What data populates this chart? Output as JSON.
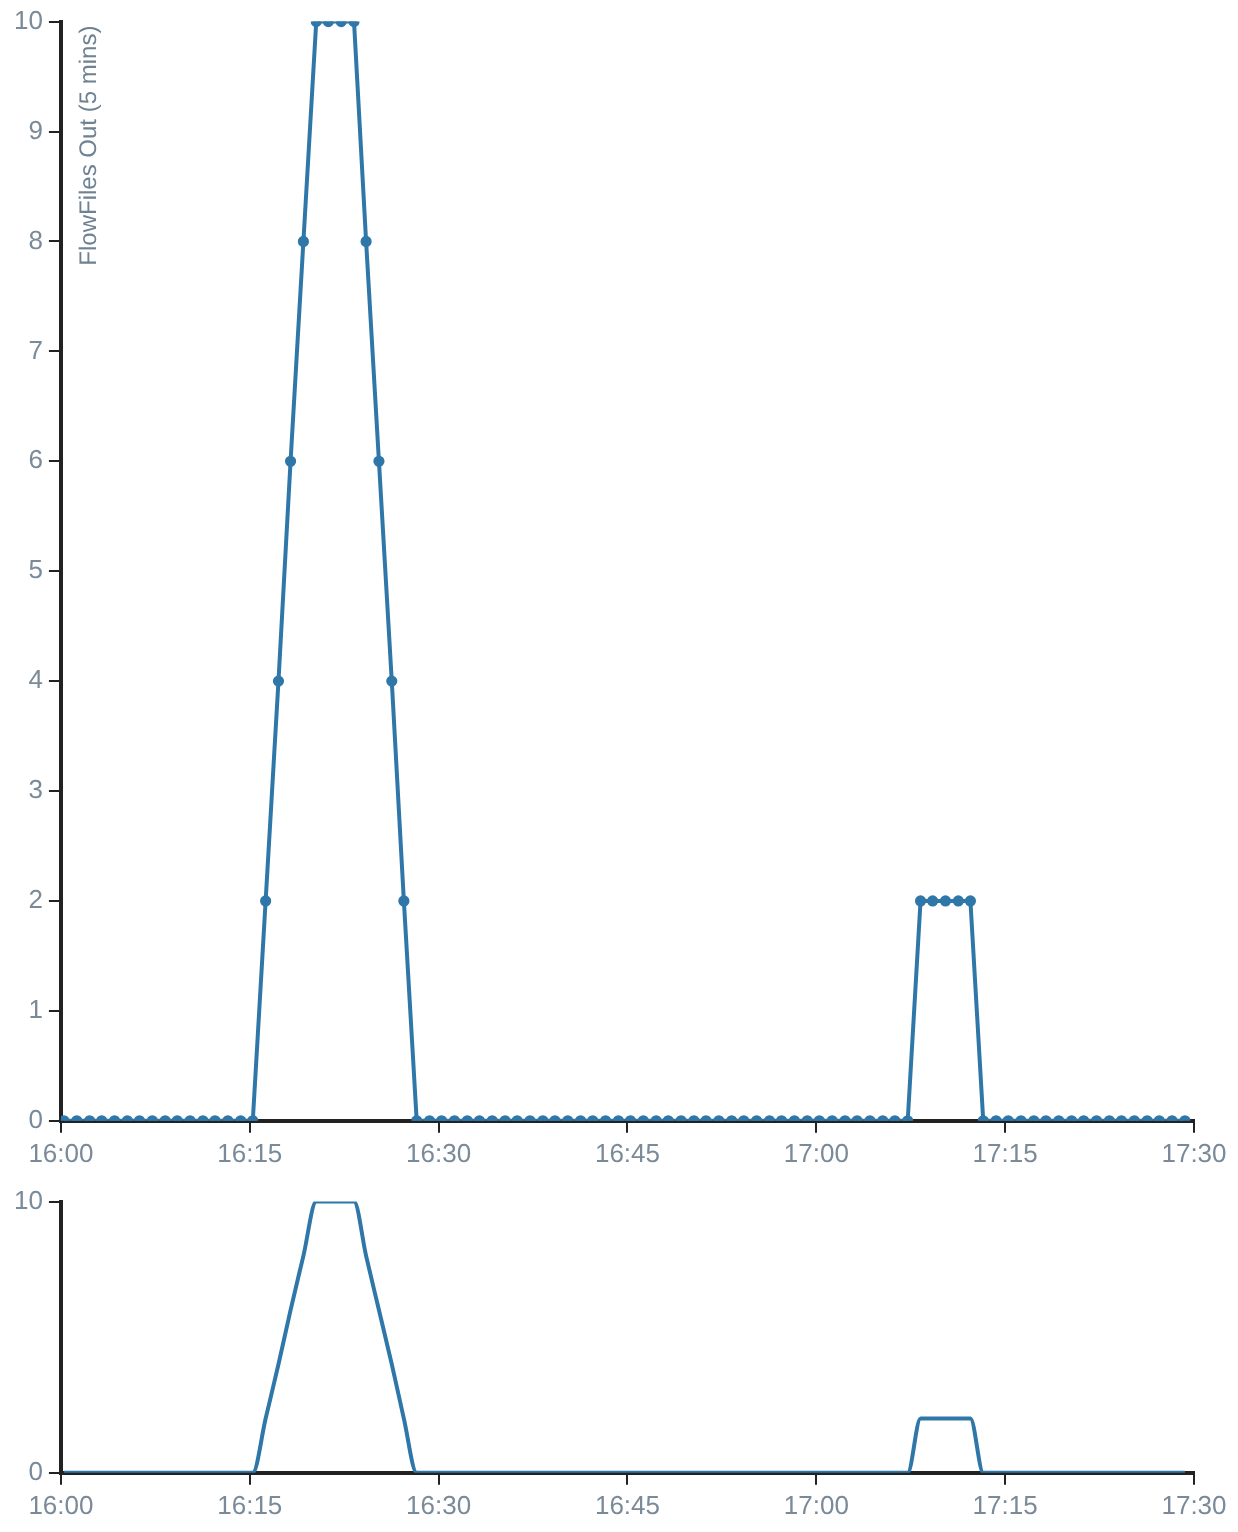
{
  "chart_data": [
    {
      "type": "line",
      "ylabel": "FlowFiles Out (5 mins)",
      "color": "#2f77a8",
      "marker": "circle",
      "x": [
        16.004,
        16.021,
        16.038,
        16.054,
        16.071,
        16.088,
        16.104,
        16.121,
        16.138,
        16.154,
        16.171,
        16.188,
        16.204,
        16.221,
        16.238,
        16.254,
        16.271,
        16.288,
        16.304,
        16.321,
        16.338,
        16.354,
        16.371,
        16.388,
        16.404,
        16.421,
        16.438,
        16.454,
        16.471,
        16.488,
        16.504,
        16.521,
        16.538,
        16.554,
        16.571,
        16.588,
        16.604,
        16.621,
        16.638,
        16.654,
        16.671,
        16.688,
        16.704,
        16.721,
        16.738,
        16.754,
        16.771,
        16.788,
        16.804,
        16.821,
        16.838,
        16.854,
        16.871,
        16.888,
        16.904,
        16.921,
        16.938,
        16.954,
        16.971,
        16.988,
        17.004,
        17.021,
        17.038,
        17.054,
        17.071,
        17.088,
        17.104,
        17.121,
        17.138,
        17.154,
        17.171,
        17.188,
        17.204,
        17.221,
        17.238,
        17.254,
        17.271,
        17.288,
        17.304,
        17.321,
        17.338,
        17.354,
        17.371,
        17.388,
        17.404,
        17.421,
        17.438,
        17.454,
        17.471,
        17.488
      ],
      "values": [
        0,
        0,
        0,
        0,
        0,
        0,
        0,
        0,
        0,
        0,
        0,
        0,
        0,
        0,
        0,
        0,
        2,
        4,
        6,
        8,
        10,
        10,
        10,
        10,
        8,
        6,
        4,
        2,
        0,
        0,
        0,
        0,
        0,
        0,
        0,
        0,
        0,
        0,
        0,
        0,
        0,
        0,
        0,
        0,
        0,
        0,
        0,
        0,
        0,
        0,
        0,
        0,
        0,
        0,
        0,
        0,
        0,
        0,
        0,
        0,
        0,
        0,
        0,
        0,
        0,
        0,
        0,
        0,
        2,
        2,
        2,
        2,
        2,
        0,
        0,
        0,
        0,
        0,
        0,
        0,
        0,
        0,
        0,
        0,
        0,
        0,
        0,
        0,
        0,
        0
      ],
      "xlim": [
        16,
        17.5
      ],
      "xticks": [
        {
          "value": 16,
          "label": "16:00"
        },
        {
          "value": 16.25,
          "label": "16:15"
        },
        {
          "value": 16.5,
          "label": "16:30"
        },
        {
          "value": 16.75,
          "label": "16:45"
        },
        {
          "value": 17,
          "label": "17:00"
        },
        {
          "value": 17.25,
          "label": "17:15"
        },
        {
          "value": 17.5,
          "label": "17:30"
        }
      ],
      "ylim": [
        0,
        10
      ],
      "yticks": [
        0,
        1,
        2,
        3,
        4,
        5,
        6,
        7,
        8,
        9,
        10
      ]
    },
    {
      "type": "line",
      "color": "#2f77a8",
      "marker": "none",
      "x": [
        16.004,
        16.021,
        16.038,
        16.054,
        16.071,
        16.088,
        16.104,
        16.121,
        16.138,
        16.154,
        16.171,
        16.188,
        16.204,
        16.221,
        16.238,
        16.254,
        16.271,
        16.288,
        16.304,
        16.321,
        16.338,
        16.354,
        16.371,
        16.388,
        16.404,
        16.421,
        16.438,
        16.454,
        16.471,
        16.488,
        16.504,
        16.521,
        16.538,
        16.554,
        16.571,
        16.588,
        16.604,
        16.621,
        16.638,
        16.654,
        16.671,
        16.688,
        16.704,
        16.721,
        16.738,
        16.754,
        16.771,
        16.788,
        16.804,
        16.821,
        16.838,
        16.854,
        16.871,
        16.888,
        16.904,
        16.921,
        16.938,
        16.954,
        16.971,
        16.988,
        17.004,
        17.021,
        17.038,
        17.054,
        17.071,
        17.088,
        17.104,
        17.121,
        17.138,
        17.154,
        17.171,
        17.188,
        17.204,
        17.221,
        17.238,
        17.254,
        17.271,
        17.288,
        17.304,
        17.321,
        17.338,
        17.354,
        17.371,
        17.388,
        17.404,
        17.421,
        17.438,
        17.454,
        17.471,
        17.488
      ],
      "values": [
        0,
        0,
        0,
        0,
        0,
        0,
        0,
        0,
        0,
        0,
        0,
        0,
        0,
        0,
        0,
        0,
        2,
        4,
        6,
        8,
        10,
        10,
        10,
        10,
        8,
        6,
        4,
        2,
        0,
        0,
        0,
        0,
        0,
        0,
        0,
        0,
        0,
        0,
        0,
        0,
        0,
        0,
        0,
        0,
        0,
        0,
        0,
        0,
        0,
        0,
        0,
        0,
        0,
        0,
        0,
        0,
        0,
        0,
        0,
        0,
        0,
        0,
        0,
        0,
        0,
        0,
        0,
        0,
        2,
        2,
        2,
        2,
        2,
        0,
        0,
        0,
        0,
        0,
        0,
        0,
        0,
        0,
        0,
        0,
        0,
        0,
        0,
        0,
        0,
        0
      ],
      "xlim": [
        16,
        17.5
      ],
      "xticks": [
        {
          "value": 16,
          "label": "16:00"
        },
        {
          "value": 16.25,
          "label": "16:15"
        },
        {
          "value": 16.5,
          "label": "16:30"
        },
        {
          "value": 16.75,
          "label": "16:45"
        },
        {
          "value": 17,
          "label": "17:00"
        },
        {
          "value": 17.25,
          "label": "17:15"
        },
        {
          "value": 17.5,
          "label": "17:30"
        }
      ],
      "ylim": [
        0,
        10
      ],
      "yticks": [
        0,
        10
      ]
    }
  ]
}
